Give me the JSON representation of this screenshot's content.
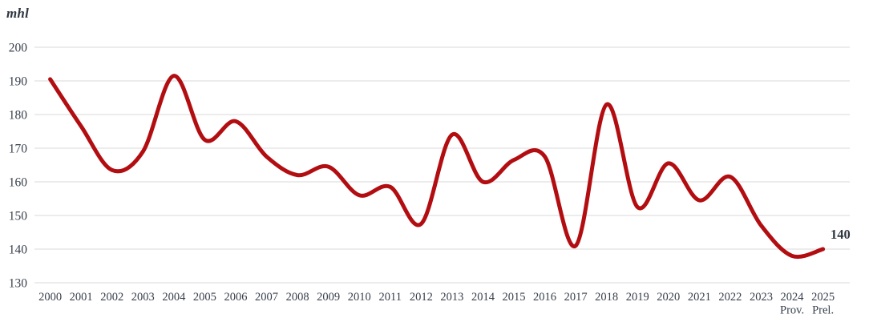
{
  "chart": {
    "unit_label": "mhl",
    "end_label": "140"
  },
  "chart_data": {
    "type": "line",
    "title": "",
    "unit": "mhl",
    "categories": [
      "2000",
      "2001",
      "2002",
      "2003",
      "2004",
      "2005",
      "2006",
      "2007",
      "2008",
      "2009",
      "2010",
      "2011",
      "2012",
      "2013",
      "2014",
      "2015",
      "2016",
      "2017",
      "2018",
      "2019",
      "2020",
      "2021",
      "2022",
      "2023",
      "2024 Prov.",
      "2025 Prel."
    ],
    "values": [
      190.5,
      176.5,
      163.5,
      169,
      191.5,
      172.5,
      178,
      167.5,
      162,
      164.5,
      156,
      158.5,
      147.5,
      174,
      160,
      166.5,
      167.5,
      141,
      183,
      152.5,
      165.5,
      154.5,
      161.5,
      147,
      138,
      140
    ],
    "yticks": [
      200,
      190,
      180,
      170,
      160,
      150,
      140,
      130
    ],
    "ylim": [
      130,
      200
    ],
    "grid": "horizontal",
    "legend": "none",
    "annotation": {
      "text": "140",
      "category": "2025 Prel.",
      "value": 140
    },
    "colors": {
      "line": "#b20e12",
      "grid": "#d8d8d8",
      "text": "#39404c"
    }
  }
}
